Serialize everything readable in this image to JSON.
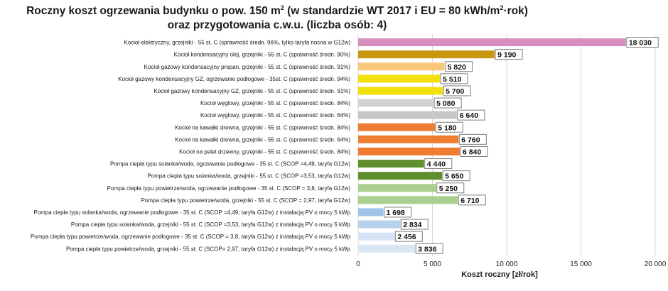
{
  "title_line1_a": "Roczny koszt ogrzewania budynku  o pow. 150 m",
  "title_line1_sup": "2",
  "title_line1_b": "  (w standardzie WT 2017 i EU = 80 kWh/m",
  "title_line1_sup2": "2",
  "title_line1_c": "·rok)",
  "title_line2": "oraz przygotowania c.w.u. (liczba osób: 4)",
  "chart_data": {
    "type": "bar",
    "orientation": "horizontal",
    "xlabel": "Koszt roczny [zł/rok]",
    "xlim": [
      0,
      20000
    ],
    "xticks": [
      0,
      5000,
      10000,
      15000,
      20000
    ],
    "xtick_labels": [
      "0",
      "5 000",
      "10 000",
      "15 000",
      "20 000"
    ],
    "grid": true,
    "categories": [
      "Kocioł  elektryczny,  grzejniki - 55 st. C  (sprawność średn. 96%, tylko taryfa nocna w G12w)",
      "Kocioł  kondensacyjny olej, grzejniki - 55 st. C  (sprawność średn. 90%)",
      "Kocioł gazowy kondensacyjny propan, grzejniki - 55 st. C  (sprawność średn. 91%)",
      "Kocioł gazowy kondensacyjny GZ, ogrzewanie podłogowe - 35st. C  (sprawność średn. 94%)",
      "Kocioł gazowy kondensacyjny GZ, grzejniki - 55 st. C  (sprawność średn. 91%)",
      "Kocioł węglowy,  grzejniki - 55 st. C  (sprawność średn. 84%)",
      "Kocioł węglowy,  grzejniki - 55 st. C  (sprawność średn. 64%)",
      "Kocioł na kawałki drewna, grzejniki - 55 st. C  (sprawność średn. 84%)",
      "Kocioł na kawałki drewna, grzejniki - 55 st. C  (sprawność średn. 64%)",
      "Kocioł na pelet drzewny, grzejniki - 55 st. C  (sprawność średn. 84%)",
      "Pompa ciepła typu solanka/woda, ogrzewanie podłogowe - 35 st. C  (SCOP =4,49, taryfa G12w)",
      "Pompa ciepła typu solanka/woda, grzejniki - 55 st. C  (SCOP =3,53, taryfa G12w)",
      "Pompa ciepła typu powietrze/woda, ogrzewanie podłogowe - 35 st. C  (SCOP = 3,8, taryfa G12w)",
      "Pompa ciepła typu powietrze/woda, grzejniki - 55 st. C  (SCOP = 2,97, taryfa G12w)",
      "Pompa ciepła typu solanka/woda, ogrzewanie podłogowe - 35 st. C  (SCOP =4,49, taryfa G12w) z instalacją PV o mocy 5 kWp",
      "Pompa ciepła typu solanka/woda, grzejniki - 55 st. C (SCOP =3,53, taryfa G12w) z instalacją PV o mocy 5 kWp",
      "Pompa ciepła typu powietrze/woda, ogrzewanie podłogowe - 35 st. C  (SCOP = 3,8, taryfa G12w) z instalacją PV o mocy 5 kWp",
      "Pompa ciepła typu powietrze/woda, grzejniki - 55 st. C (SCOP= 2,97, taryfa G12w) z instalacją PV o mocy 5 kWp"
    ],
    "values": [
      18030,
      9190,
      5820,
      5510,
      5700,
      5080,
      6640,
      5180,
      6760,
      6840,
      4440,
      5650,
      5250,
      6710,
      1698,
      2834,
      2456,
      3836
    ],
    "value_labels": [
      "18 030",
      "9 190",
      "5 820",
      "5 510",
      "5 700",
      "5 080",
      "6 640",
      "5 180",
      "6 760",
      "6 840",
      "4 440",
      "5 650",
      "5 250",
      "6 710",
      "1 698",
      "2 834",
      "2 456",
      "3 836"
    ],
    "colors": [
      "#d88fc0",
      "#c8960f",
      "#f8c77c",
      "#f1e00a",
      "#f1e00a",
      "#d2d2d2",
      "#c6c6c6",
      "#ee7d31",
      "#ee7d31",
      "#ee7d31",
      "#5e8f2c",
      "#5e8f2c",
      "#a9d08e",
      "#a9d08e",
      "#9dc3e6",
      "#b6d2ec",
      "#d3e3f3",
      "#d9e6f4"
    ]
  }
}
